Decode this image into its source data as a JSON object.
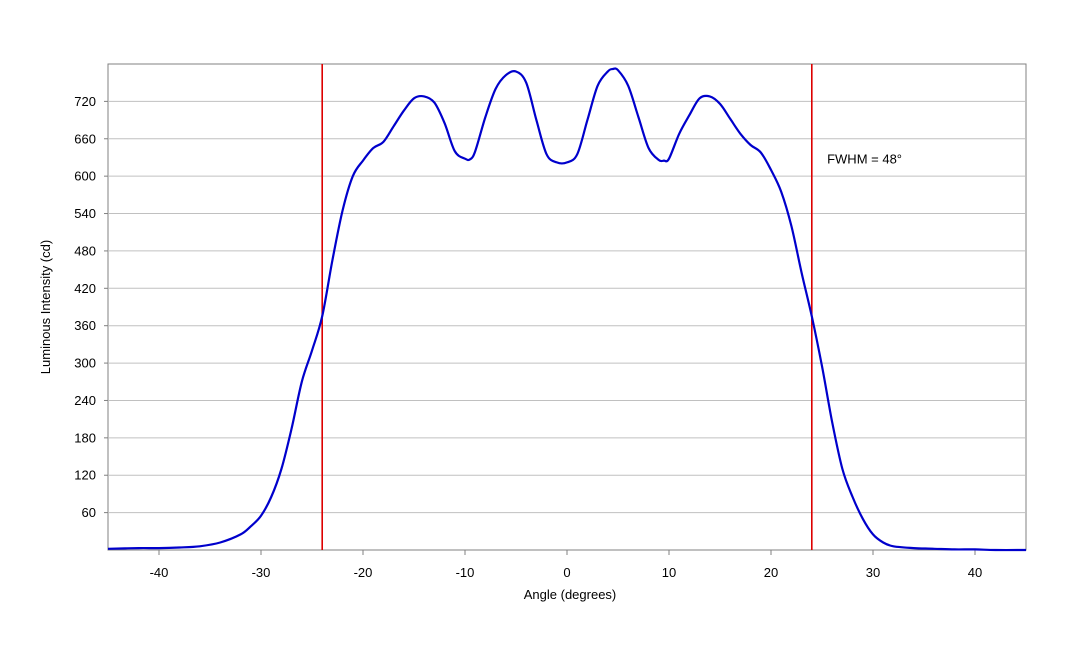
{
  "chart_data": {
    "type": "line",
    "title": "",
    "xlabel": "Angle (degrees)",
    "ylabel": "Luminous Intensity (cd)",
    "xlim": [
      -45,
      45
    ],
    "ylim": [
      0,
      780
    ],
    "x_ticks": [
      -40,
      -30,
      -20,
      -10,
      0,
      10,
      20,
      30,
      40
    ],
    "x_tick_labels": [
      "-40",
      "-30",
      "-20",
      "-10",
      "0",
      "10",
      "20",
      "30",
      "40"
    ],
    "y_ticks": [
      60,
      120,
      180,
      240,
      300,
      360,
      420,
      480,
      540,
      600,
      660,
      720
    ],
    "y_tick_labels": [
      "60",
      "120",
      "180",
      "240",
      "300",
      "360",
      "420",
      "480",
      "540",
      "600",
      "660",
      "720"
    ],
    "grid": true,
    "colors": {
      "curve": "#0000cc",
      "markers": "#dd0000",
      "grid": "#c0c0c0",
      "axes": "#808080"
    },
    "series": [
      {
        "x": [
          -45,
          -42,
          -40,
          -38,
          -36,
          -34,
          -32,
          -31,
          -30,
          -29,
          -28,
          -27,
          -26,
          -25,
          -24,
          -23,
          -22,
          -21,
          -20,
          -19,
          -18,
          -17,
          -16,
          -15,
          -14,
          -13,
          -12,
          -11,
          -10,
          -9.5,
          -9,
          -8,
          -7,
          -6,
          -5,
          -4,
          -3,
          -2,
          -1,
          0,
          1,
          2,
          3,
          4,
          4.5,
          5,
          6,
          7,
          8,
          9,
          9.5,
          10,
          11,
          12,
          13,
          14,
          15,
          16,
          17,
          18,
          19,
          20,
          21,
          22,
          23,
          24,
          25,
          26,
          27,
          28,
          29,
          30,
          31,
          32,
          34,
          36,
          38,
          40,
          42,
          45
        ],
        "y": [
          2,
          3,
          3,
          4,
          6,
          12,
          25,
          38,
          55,
          85,
          130,
          195,
          270,
          320,
          375,
          465,
          545,
          600,
          625,
          645,
          655,
          680,
          705,
          725,
          728,
          718,
          685,
          640,
          628,
          627,
          640,
          695,
          740,
          762,
          768,
          750,
          690,
          635,
          622,
          622,
          635,
          690,
          745,
          768,
          772,
          770,
          745,
          695,
          645,
          626,
          625,
          628,
          668,
          698,
          725,
          728,
          716,
          692,
          668,
          650,
          638,
          610,
          575,
          520,
          445,
          375,
          295,
          205,
          130,
          85,
          50,
          25,
          12,
          6,
          3,
          2,
          1,
          1,
          0,
          0
        ]
      }
    ],
    "vertical_lines": [
      -24,
      24
    ],
    "annotations": [
      {
        "text": "FWHM = 48°",
        "x": 25.5,
        "y": 620
      }
    ]
  }
}
